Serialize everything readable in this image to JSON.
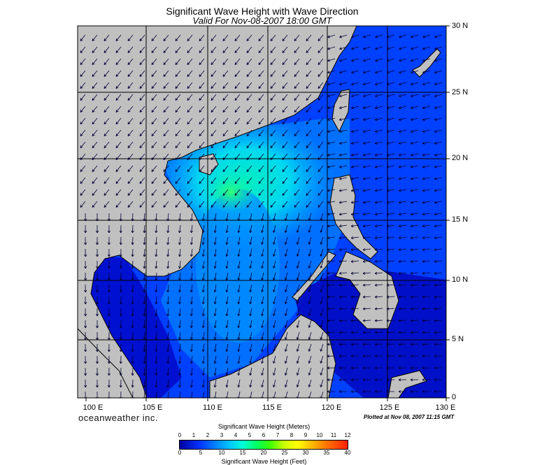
{
  "header": {
    "title": "Significant Wave Height with Wave Direction",
    "subtitle": "Valid For Nov-08-2007 18:00 GMT"
  },
  "map": {
    "lat_labels": [
      "30 N",
      "25 N",
      "20 N",
      "15 N",
      "10 N",
      "5 N",
      "0"
    ],
    "lon_labels": [
      "100 E",
      "105 E",
      "110 E",
      "115 E",
      "120 E",
      "125 E",
      "130 E"
    ],
    "colors": {
      "land": "#c0c0c0",
      "deep_blue": "#0000c8",
      "blue": "#0030ff",
      "mid_blue": "#0070ff",
      "cyan": "#00c8ff",
      "aqua": "#00e8e8",
      "green": "#00ff80",
      "border": "#000000"
    }
  },
  "footer": {
    "brand": "oceanweather inc.",
    "plotted": "Plotted at Nov 08, 2007 11:15 GMT"
  },
  "legend": {
    "meters_title": "Significant Wave Height (Meters)",
    "feet_title": "Significant Wave Height (Feet)",
    "meters_ticks": [
      "0",
      "1",
      "2",
      "3",
      "4",
      "5",
      "6",
      "7",
      "8",
      "9",
      "10",
      "11",
      "12"
    ],
    "feet_ticks": [
      "0",
      "5",
      "10",
      "15",
      "20",
      "25",
      "30",
      "35",
      "40"
    ]
  }
}
